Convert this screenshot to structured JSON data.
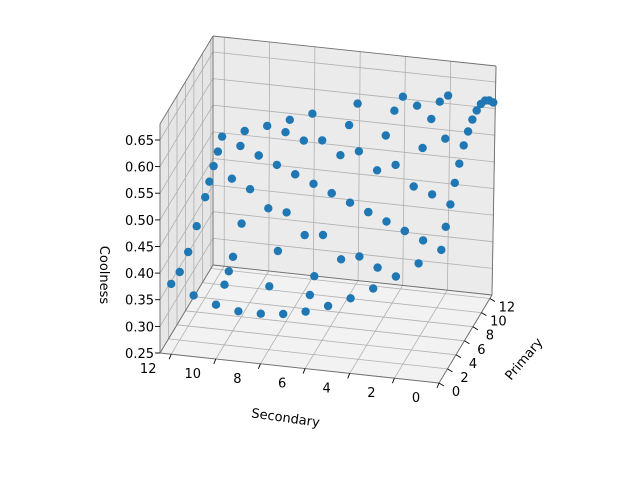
{
  "chart_data": {
    "type": "scatter3d",
    "title": "",
    "xlabel": "Primary",
    "ylabel": "Secondary",
    "zlabel": "Coolness",
    "xticks": [
      "0",
      "2",
      "4",
      "6",
      "8",
      "10",
      "12"
    ],
    "yticks": [
      "0",
      "2",
      "4",
      "6",
      "8",
      "10",
      "12"
    ],
    "zticks": [
      "0.25",
      "0.30",
      "0.35",
      "0.40",
      "0.45",
      "0.50",
      "0.55",
      "0.60",
      "0.65"
    ],
    "xlim": [
      0,
      12.5
    ],
    "ylim": [
      0,
      12.5
    ],
    "zlim": [
      0.25,
      0.68
    ],
    "marker_color": "#1f77b4",
    "grid": true,
    "points": [
      {
        "x": 0,
        "y": 0,
        "z": 0.5
      },
      {
        "x": 2,
        "y": 0,
        "z": 0.559
      },
      {
        "x": 4,
        "y": 0,
        "z": 0.609
      },
      {
        "x": 6,
        "y": 0,
        "z": 0.643
      },
      {
        "x": 8,
        "y": 0,
        "z": 0.656
      },
      {
        "x": 10,
        "y": 0,
        "z": 0.648
      },
      {
        "x": 12,
        "y": 0,
        "z": 0.618
      },
      {
        "x": 0,
        "y": 2,
        "z": 0.441
      },
      {
        "x": 2,
        "y": 2,
        "z": 0.5
      },
      {
        "x": 4,
        "y": 2,
        "z": 0.557
      },
      {
        "x": 6,
        "y": 2,
        "z": 0.603
      },
      {
        "x": 8,
        "y": 2,
        "z": 0.631
      },
      {
        "x": 10,
        "y": 2,
        "z": 0.637
      },
      {
        "x": 12,
        "y": 2,
        "z": 0.622
      },
      {
        "x": 0,
        "y": 4,
        "z": 0.391
      },
      {
        "x": 2,
        "y": 4,
        "z": 0.443
      },
      {
        "x": 4,
        "y": 4,
        "z": 0.5
      },
      {
        "x": 6,
        "y": 4,
        "z": 0.552
      },
      {
        "x": 8,
        "y": 4,
        "z": 0.591
      },
      {
        "x": 10,
        "y": 4,
        "z": 0.611
      },
      {
        "x": 12,
        "y": 4,
        "z": 0.611
      },
      {
        "x": 0,
        "y": 6,
        "z": 0.357
      },
      {
        "x": 2,
        "y": 6,
        "z": 0.397
      },
      {
        "x": 4,
        "y": 6,
        "z": 0.448
      },
      {
        "x": 6,
        "y": 6,
        "z": 0.5
      },
      {
        "x": 8,
        "y": 6,
        "z": 0.545
      },
      {
        "x": 10,
        "y": 6,
        "z": 0.575
      },
      {
        "x": 12,
        "y": 6,
        "z": 0.589
      },
      {
        "x": 0,
        "y": 8,
        "z": 0.344
      },
      {
        "x": 2,
        "y": 8,
        "z": 0.369
      },
      {
        "x": 4,
        "y": 8,
        "z": 0.409
      },
      {
        "x": 6,
        "y": 8,
        "z": 0.455
      },
      {
        "x": 8,
        "y": 8,
        "z": 0.5
      },
      {
        "x": 10,
        "y": 8,
        "z": 0.537
      },
      {
        "x": 12,
        "y": 8,
        "z": 0.561
      },
      {
        "x": 0,
        "y": 10,
        "z": 0.352
      },
      {
        "x": 2,
        "y": 10,
        "z": 0.363
      },
      {
        "x": 4,
        "y": 10,
        "z": 0.389
      },
      {
        "x": 6,
        "y": 10,
        "z": 0.425
      },
      {
        "x": 8,
        "y": 10,
        "z": 0.463
      },
      {
        "x": 10,
        "y": 10,
        "z": 0.5
      },
      {
        "x": 12,
        "y": 10,
        "z": 0.529
      },
      {
        "x": 0,
        "y": 12,
        "z": 0.382
      },
      {
        "x": 2,
        "y": 12,
        "z": 0.378
      },
      {
        "x": 4,
        "y": 12,
        "z": 0.389
      },
      {
        "x": 6,
        "y": 12,
        "z": 0.411
      },
      {
        "x": 8,
        "y": 12,
        "z": 0.439
      },
      {
        "x": 10,
        "y": 12,
        "z": 0.471
      },
      {
        "x": 12,
        "y": 12,
        "z": 0.5
      },
      {
        "x": 1,
        "y": 1,
        "z": 0.5
      },
      {
        "x": 2,
        "y": 2,
        "z": 0.5
      },
      {
        "x": 3,
        "y": 3,
        "z": 0.5
      },
      {
        "x": 4,
        "y": 4,
        "z": 0.5
      },
      {
        "x": 5,
        "y": 5,
        "z": 0.5
      },
      {
        "x": 6,
        "y": 6,
        "z": 0.5
      },
      {
        "x": 7,
        "y": 7,
        "z": 0.5
      },
      {
        "x": 8,
        "y": 8,
        "z": 0.5
      },
      {
        "x": 9,
        "y": 9,
        "z": 0.5
      },
      {
        "x": 10,
        "y": 10,
        "z": 0.5
      },
      {
        "x": 11,
        "y": 11,
        "z": 0.5
      },
      {
        "x": 0,
        "y": 1,
        "z": 0.47
      },
      {
        "x": 1,
        "y": 0,
        "z": 0.53
      },
      {
        "x": 0,
        "y": 3,
        "z": 0.414
      },
      {
        "x": 3,
        "y": 0,
        "z": 0.586
      },
      {
        "x": 1,
        "y": 3,
        "z": 0.44
      },
      {
        "x": 3,
        "y": 1,
        "z": 0.56
      },
      {
        "x": 5,
        "y": 0,
        "z": 0.63
      },
      {
        "x": 7,
        "y": 0,
        "z": 0.652
      },
      {
        "x": 9,
        "y": 0,
        "z": 0.655
      },
      {
        "x": 11,
        "y": 0,
        "z": 0.635
      },
      {
        "x": 0,
        "y": 5,
        "z": 0.372
      },
      {
        "x": 0,
        "y": 7,
        "z": 0.348
      },
      {
        "x": 0,
        "y": 9,
        "z": 0.344
      },
      {
        "x": 0,
        "y": 11,
        "z": 0.365
      },
      {
        "x": 12,
        "y": 11,
        "z": 0.515
      },
      {
        "x": 11,
        "y": 12,
        "z": 0.485
      },
      {
        "x": 12,
        "y": 9,
        "z": 0.545
      },
      {
        "x": 9,
        "y": 12,
        "z": 0.455
      },
      {
        "x": 5,
        "y": 3,
        "z": 0.58
      },
      {
        "x": 3,
        "y": 5,
        "z": 0.42
      },
      {
        "x": 7,
        "y": 5,
        "z": 0.57
      },
      {
        "x": 5,
        "y": 7,
        "z": 0.43
      },
      {
        "x": 9,
        "y": 7,
        "z": 0.555
      },
      {
        "x": 7,
        "y": 9,
        "z": 0.445
      },
      {
        "x": 11,
        "y": 9,
        "z": 0.535
      },
      {
        "x": 9,
        "y": 11,
        "z": 0.465
      },
      {
        "x": 6,
        "y": 1,
        "z": 0.625
      },
      {
        "x": 1,
        "y": 6,
        "z": 0.375
      },
      {
        "x": 10,
        "y": 3,
        "z": 0.625
      },
      {
        "x": 3,
        "y": 10,
        "z": 0.375
      }
    ]
  }
}
